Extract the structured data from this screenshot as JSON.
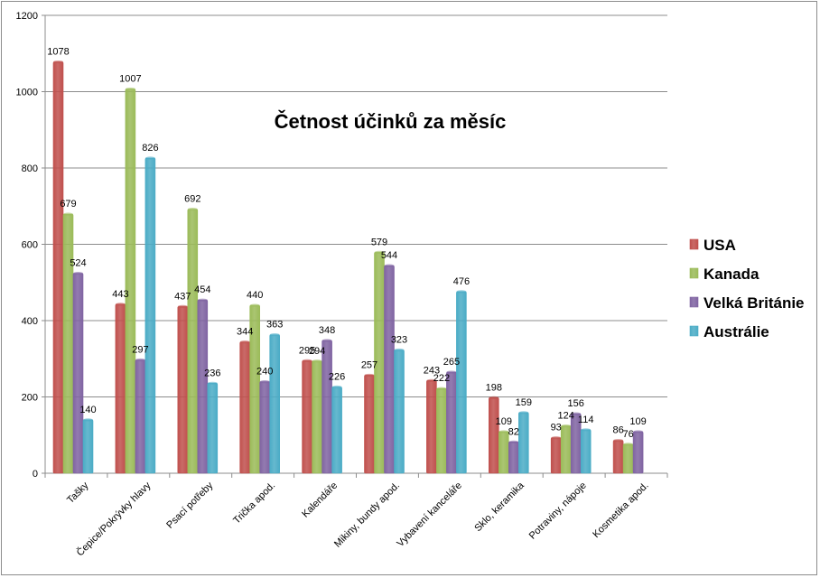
{
  "chart_data": {
    "type": "bar",
    "title": "Četnost účinků za měsíc",
    "xlabel": "",
    "ylabel": "",
    "ylim": [
      0,
      1200
    ],
    "yticks": [
      0,
      200,
      400,
      600,
      800,
      1000,
      1200
    ],
    "grid": true,
    "legend_position": "right",
    "categories": [
      "Tašky",
      "Čepice/Pokrývky hlavy",
      "Psací potřeby",
      "Trička apod.",
      "Kalendáře",
      "Mikiny, bundy apod.",
      "Vybavení kanceláře",
      "Sklo, keramika",
      "Potraviny, nápoje",
      "Kosmetika apod."
    ],
    "series": [
      {
        "name": "USA",
        "color": "#c0504d",
        "values": [
          1078,
          443,
          437,
          344,
          295,
          257,
          243,
          198,
          93,
          86
        ]
      },
      {
        "name": "Kanada",
        "color": "#9bbb59",
        "values": [
          679,
          1007,
          692,
          440,
          294,
          579,
          222,
          109,
          124,
          76
        ]
      },
      {
        "name": "Velká Británie",
        "color": "#8064a2",
        "values": [
          524,
          297,
          454,
          240,
          348,
          544,
          265,
          82,
          156,
          109
        ]
      },
      {
        "name": "Austrálie",
        "color": "#4bacc6",
        "values": [
          140,
          826,
          236,
          363,
          226,
          323,
          476,
          159,
          114,
          null
        ]
      }
    ]
  }
}
